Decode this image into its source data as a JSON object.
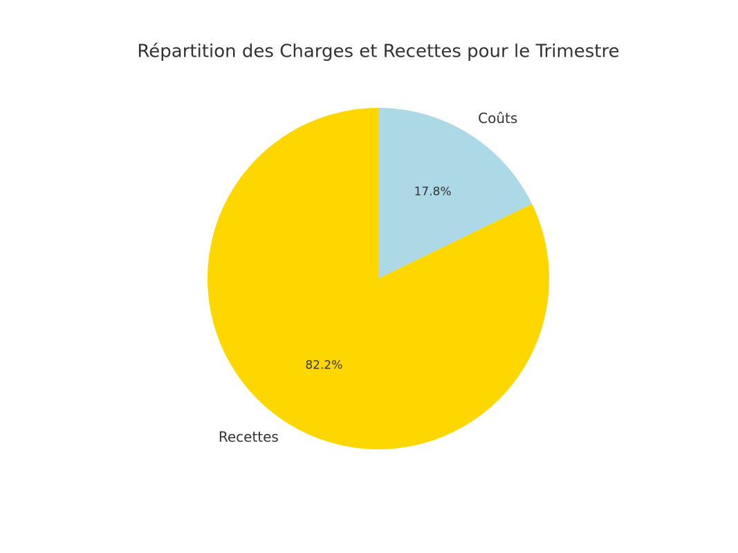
{
  "chart_data": {
    "type": "pie",
    "title": "Répartition des Charges et Recettes pour le Trimestre",
    "categories": [
      "Coûts",
      "Recettes"
    ],
    "values": [
      17.8,
      82.2
    ],
    "value_labels": [
      "17.8%",
      "82.2%"
    ],
    "colors": [
      "#add8e6",
      "#ffd700"
    ]
  }
}
